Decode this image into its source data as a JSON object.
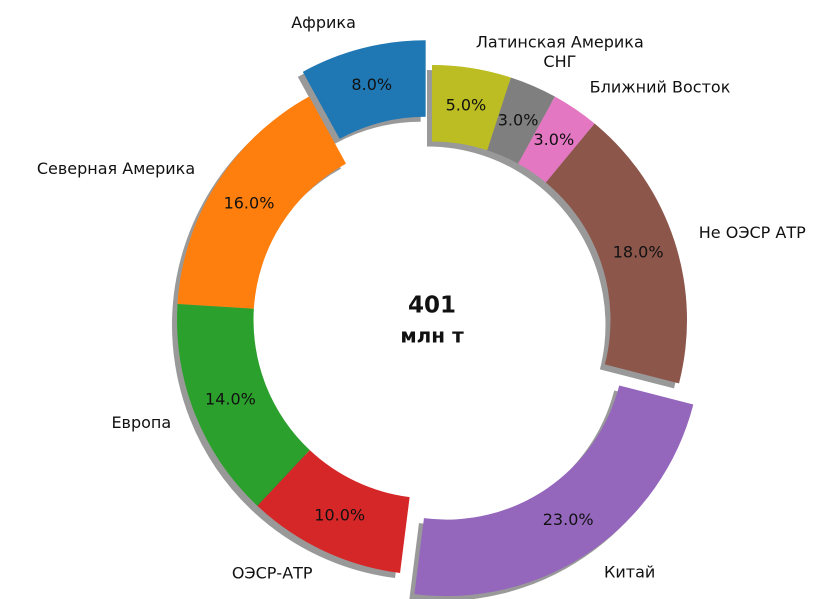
{
  "chart_data": {
    "type": "donut",
    "categories": [
      "Африка",
      "Северная Америка",
      "Европа",
      "ОЭСР-АТР",
      "Китай",
      "Не ОЭСР АТР",
      "Ближний Восток",
      "СНГ",
      "Латинская Америка"
    ],
    "values": [
      8,
      16,
      14,
      10,
      23,
      18,
      3,
      3,
      5
    ],
    "value_labels": [
      "8.0%",
      "16.0%",
      "14.0%",
      "10.0%",
      "23.0%",
      "18.0%",
      "3.0%",
      "3.0%",
      "5.0%"
    ],
    "colors": [
      "#1f77b4",
      "#ff7f0e",
      "#2ca02c",
      "#d62728",
      "#9467bd",
      "#8c564b",
      "#e377c2",
      "#7f7f7f",
      "#bcbd22"
    ],
    "explode": [
      0.1,
      0,
      0,
      0,
      0.1,
      0,
      0,
      0,
      0
    ],
    "shadow": true,
    "center_text": [
      "401",
      "млн т"
    ]
  }
}
